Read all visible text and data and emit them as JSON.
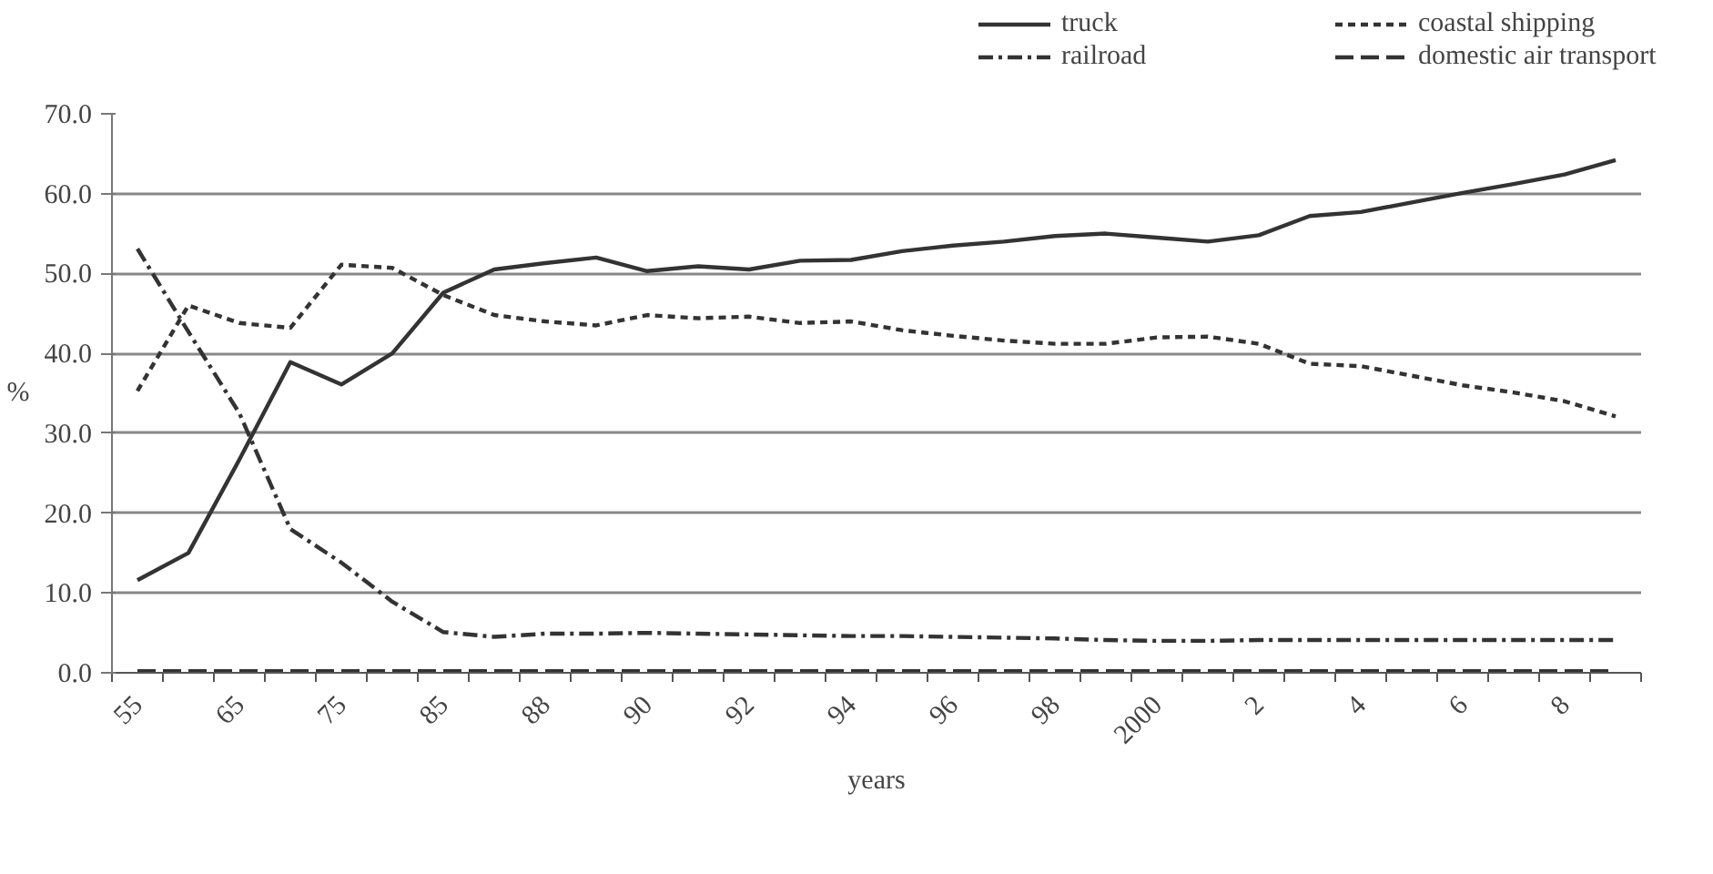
{
  "chart_data": {
    "type": "line",
    "xlabel": "years",
    "ylabel": "%",
    "categories": [
      "55",
      null,
      "65",
      null,
      "75",
      null,
      "85",
      null,
      "88",
      null,
      "90",
      null,
      "92",
      null,
      "94",
      null,
      "96",
      null,
      "98",
      null,
      "2000",
      null,
      "2",
      null,
      "4",
      null,
      "6",
      null,
      "8",
      null
    ],
    "ylim": [
      0,
      70
    ],
    "yticks": [
      {
        "value": 0,
        "label": "0.0"
      },
      {
        "value": 10,
        "label": "10.0"
      },
      {
        "value": 20,
        "label": "20.0"
      },
      {
        "value": 30,
        "label": "30.0"
      },
      {
        "value": 40,
        "label": "40.0"
      },
      {
        "value": 50,
        "label": "50.0"
      },
      {
        "value": 60,
        "label": "60.0"
      },
      {
        "value": 70,
        "label": "70.0"
      }
    ],
    "grid": "y",
    "legend": "top right",
    "marker": "none",
    "series": [
      {
        "name": "truck",
        "color": "#333333",
        "line_style": "solid",
        "values": [
          11.6,
          15.0,
          26.7,
          38.9,
          36.1,
          40.0,
          47.6,
          50.5,
          51.3,
          52.0,
          50.3,
          50.9,
          50.5,
          51.6,
          51.7,
          52.8,
          53.5,
          54.0,
          54.7,
          55.0,
          54.5,
          54.0,
          54.8,
          57.2,
          57.7,
          58.9,
          60.1,
          61.2,
          62.4,
          64.2
        ]
      },
      {
        "name": "coastal shipping",
        "color": "#333333",
        "line_style": "dashed",
        "values": [
          35.3,
          46.0,
          43.8,
          43.2,
          51.1,
          50.7,
          47.3,
          44.8,
          44.0,
          43.5,
          44.8,
          44.4,
          44.6,
          43.8,
          44.0,
          42.9,
          42.2,
          41.6,
          41.2,
          41.2,
          42.0,
          42.1,
          41.2,
          38.7,
          38.4,
          37.2,
          36.0,
          35.1,
          34.0,
          32.1
        ]
      },
      {
        "name": "railroad",
        "color": "#333333",
        "line_style": "dashdot",
        "values": [
          53.1,
          42.7,
          32.5,
          18.0,
          13.8,
          8.9,
          5.1,
          4.5,
          4.9,
          4.9,
          5.0,
          4.9,
          4.8,
          4.7,
          4.6,
          4.6,
          4.5,
          4.4,
          4.3,
          4.1,
          4.0,
          4.0,
          4.1,
          4.1,
          4.1,
          4.1,
          4.1,
          4.1,
          4.1,
          4.1
        ]
      },
      {
        "name": "domestic air transport",
        "color": "#333333",
        "line_style": "longdash",
        "values": [
          0.2,
          0.2,
          0.2,
          0.2,
          0.2,
          0.2,
          0.2,
          0.2,
          0.2,
          0.2,
          0.2,
          0.2,
          0.2,
          0.2,
          0.2,
          0.2,
          0.2,
          0.2,
          0.2,
          0.2,
          0.2,
          0.2,
          0.2,
          0.2,
          0.2,
          0.2,
          0.2,
          0.2,
          0.2,
          0.2
        ]
      }
    ]
  }
}
